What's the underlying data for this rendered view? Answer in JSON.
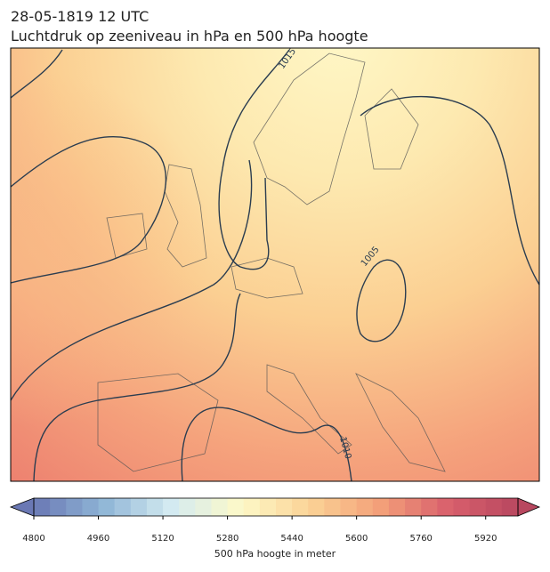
{
  "header": {
    "title": "28-05-1819 12 UTC",
    "subtitle": "Luchtdruk op zeeniveau in hPa en 500 hPa hoogte"
  },
  "map": {
    "isobar_labels": [
      "1015",
      "1005",
      "1010"
    ]
  },
  "colorbar": {
    "label": "500 hPa hoogte in meter",
    "range": [
      4800,
      6000
    ],
    "step": 40,
    "colors": [
      "#6a78b4",
      "#8fb5d6",
      "#d4ebf1",
      "#fdf9c8",
      "#fbd295",
      "#f3a079",
      "#d9606c",
      "#b8475f"
    ],
    "ticks": [
      4800,
      4960,
      5120,
      5280,
      5440,
      5600,
      5760,
      5920
    ]
  }
}
